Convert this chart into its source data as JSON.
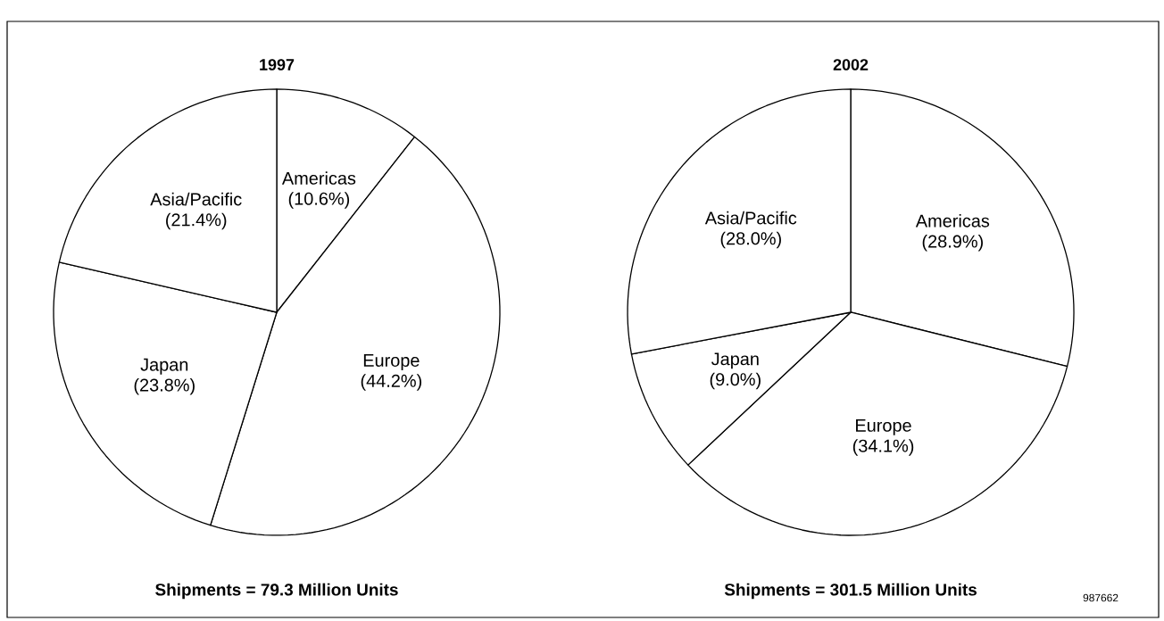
{
  "chart_data": [
    {
      "type": "pie",
      "title": "1997",
      "categories": [
        "Americas",
        "Europe",
        "Japan",
        "Asia/Pacific"
      ],
      "values": [
        10.6,
        44.2,
        23.8,
        21.4
      ],
      "colors": [
        "#ffffff",
        "#ffffff",
        "#ffffff",
        "#ffffff"
      ],
      "value_labels": [
        "(10.6%)",
        "(44.2%)",
        "(23.8%)",
        "(21.4%)"
      ],
      "annotations": [
        "Shipments = 79.3 Million Units"
      ]
    },
    {
      "type": "pie",
      "title": "2002",
      "categories": [
        "Americas",
        "Europe",
        "Japan",
        "Asia/Pacific"
      ],
      "values": [
        28.9,
        34.1,
        9.0,
        28.0
      ],
      "colors": [
        "#ffffff",
        "#ffffff",
        "#ffffff",
        "#ffffff"
      ],
      "value_labels": [
        "(28.9%)",
        "(34.1%)",
        "(9.0%)",
        "(28.0%)"
      ],
      "annotations": [
        "Shipments = 301.5 Million Units",
        "987662"
      ]
    }
  ]
}
